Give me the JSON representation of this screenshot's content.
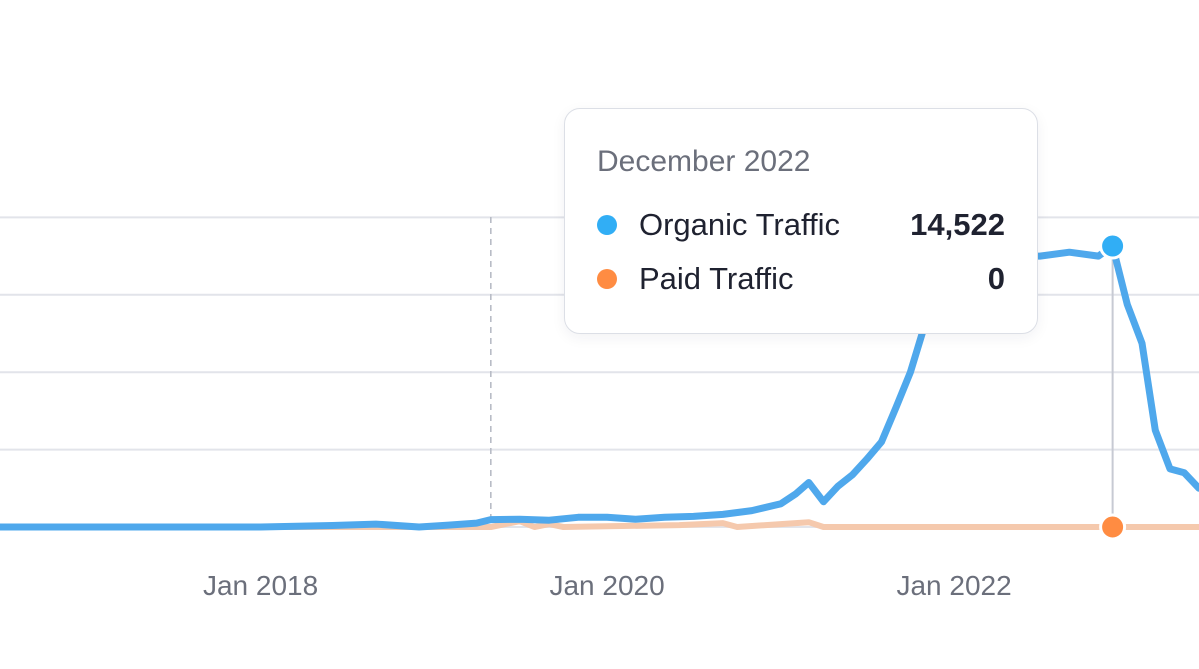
{
  "colors": {
    "organic": "#4fa8ec",
    "organic_dot": "#31aef5",
    "paid": "#ff8c42",
    "paid_line": "#f5c9ad",
    "grid": "#e2e4ea",
    "axis_text": "#6b6f7b"
  },
  "tooltip": {
    "title": "December 2022",
    "rows": [
      {
        "label": "Organic Traffic",
        "value": "14,522",
        "color": "#31aef5"
      },
      {
        "label": "Paid Traffic",
        "value": "0",
        "color": "#ff8c42"
      }
    ]
  },
  "chart_data": {
    "type": "line",
    "x_ticks": [
      "Jan 2018",
      "Jan 2020",
      "Jan 2022"
    ],
    "xlim": [
      "2016-07-01",
      "2023-06-01"
    ],
    "ylim": [
      0,
      20000
    ],
    "grid": true,
    "marker_date": "2019-05-01",
    "highlight": {
      "date": "2022-12-01",
      "organic": 14522,
      "paid": 0
    },
    "series": [
      {
        "name": "Organic Traffic",
        "color": "#4fa8ec",
        "points": [
          [
            "2016-07-01",
            0
          ],
          [
            "2017-01-01",
            0
          ],
          [
            "2017-07-01",
            0
          ],
          [
            "2018-01-01",
            0
          ],
          [
            "2018-06-01",
            80
          ],
          [
            "2018-09-01",
            150
          ],
          [
            "2018-12-01",
            0
          ],
          [
            "2019-02-01",
            100
          ],
          [
            "2019-04-01",
            200
          ],
          [
            "2019-05-01",
            380
          ],
          [
            "2019-07-01",
            400
          ],
          [
            "2019-09-01",
            350
          ],
          [
            "2019-11-01",
            500
          ],
          [
            "2020-01-01",
            500
          ],
          [
            "2020-03-01",
            400
          ],
          [
            "2020-05-01",
            500
          ],
          [
            "2020-07-01",
            550
          ],
          [
            "2020-09-01",
            650
          ],
          [
            "2020-11-01",
            850
          ],
          [
            "2021-01-01",
            1200
          ],
          [
            "2021-02-01",
            1700
          ],
          [
            "2021-03-01",
            2300
          ],
          [
            "2021-04-01",
            1300
          ],
          [
            "2021-05-01",
            2100
          ],
          [
            "2021-06-01",
            2700
          ],
          [
            "2021-07-01",
            3500
          ],
          [
            "2021-08-01",
            4400
          ],
          [
            "2021-09-01",
            6200
          ],
          [
            "2021-10-01",
            8000
          ],
          [
            "2021-11-01",
            10500
          ],
          [
            "2021-12-01",
            13000
          ],
          [
            "2022-01-01",
            14000
          ],
          [
            "2022-07-01",
            14000
          ],
          [
            "2022-09-01",
            14200
          ],
          [
            "2022-11-01",
            14000
          ],
          [
            "2022-12-01",
            14522
          ],
          [
            "2023-01-01",
            11500
          ],
          [
            "2023-02-01",
            9500
          ],
          [
            "2023-03-01",
            5000
          ],
          [
            "2023-04-01",
            3000
          ],
          [
            "2023-05-01",
            2800
          ],
          [
            "2023-06-01",
            2000
          ]
        ]
      },
      {
        "name": "Paid Traffic",
        "color": "#f5c9ad",
        "points": [
          [
            "2016-07-01",
            0
          ],
          [
            "2019-05-01",
            0
          ],
          [
            "2019-07-01",
            300
          ],
          [
            "2019-08-01",
            0
          ],
          [
            "2019-09-01",
            150
          ],
          [
            "2019-10-01",
            0
          ],
          [
            "2020-06-01",
            100
          ],
          [
            "2020-09-01",
            200
          ],
          [
            "2020-10-01",
            0
          ],
          [
            "2021-01-01",
            150
          ],
          [
            "2021-03-01",
            250
          ],
          [
            "2021-04-01",
            0
          ],
          [
            "2023-06-01",
            0
          ]
        ]
      }
    ]
  }
}
